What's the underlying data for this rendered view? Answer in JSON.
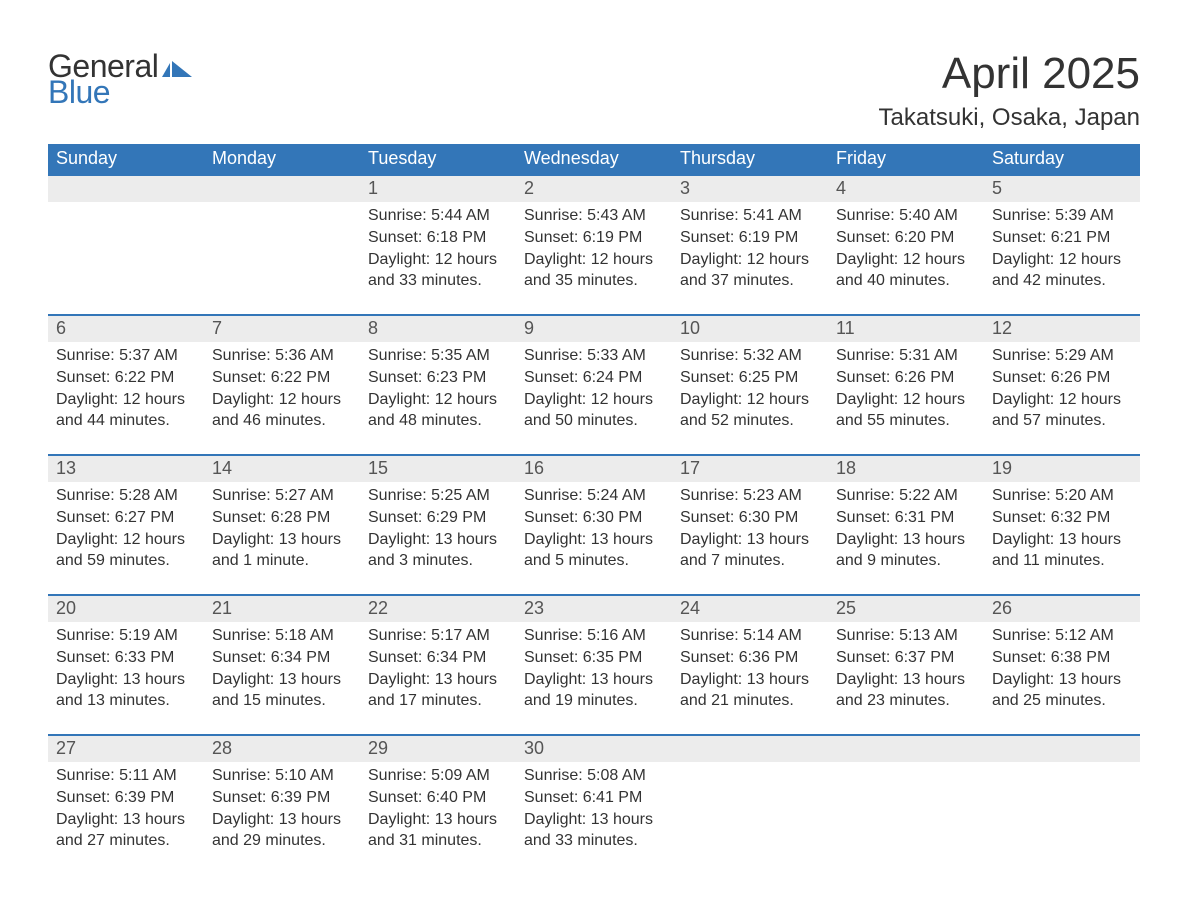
{
  "logo": {
    "line1": "General",
    "line2": "Blue",
    "color1": "#333333",
    "color2": "#3376b8"
  },
  "title": "April 2025",
  "location": "Takatsuki, Osaka, Japan",
  "layout": {
    "type": "calendar",
    "columns": 7,
    "rows": 5,
    "header_bg": "#3376b8",
    "header_fg": "#ffffff",
    "daynum_bg": "#ececec",
    "week_divider_color": "#3376b8",
    "body_bg": "#ffffff",
    "text_color": "#333333",
    "title_fontsize": 44,
    "location_fontsize": 24,
    "dow_fontsize": 18,
    "daynum_fontsize": 18,
    "body_fontsize": 16
  },
  "days_of_week": [
    "Sunday",
    "Monday",
    "Tuesday",
    "Wednesday",
    "Thursday",
    "Friday",
    "Saturday"
  ],
  "weeks": [
    [
      null,
      null,
      {
        "n": "1",
        "sunrise": "Sunrise: 5:44 AM",
        "sunset": "Sunset: 6:18 PM",
        "dl1": "Daylight: 12 hours",
        "dl2": "and 33 minutes."
      },
      {
        "n": "2",
        "sunrise": "Sunrise: 5:43 AM",
        "sunset": "Sunset: 6:19 PM",
        "dl1": "Daylight: 12 hours",
        "dl2": "and 35 minutes."
      },
      {
        "n": "3",
        "sunrise": "Sunrise: 5:41 AM",
        "sunset": "Sunset: 6:19 PM",
        "dl1": "Daylight: 12 hours",
        "dl2": "and 37 minutes."
      },
      {
        "n": "4",
        "sunrise": "Sunrise: 5:40 AM",
        "sunset": "Sunset: 6:20 PM",
        "dl1": "Daylight: 12 hours",
        "dl2": "and 40 minutes."
      },
      {
        "n": "5",
        "sunrise": "Sunrise: 5:39 AM",
        "sunset": "Sunset: 6:21 PM",
        "dl1": "Daylight: 12 hours",
        "dl2": "and 42 minutes."
      }
    ],
    [
      {
        "n": "6",
        "sunrise": "Sunrise: 5:37 AM",
        "sunset": "Sunset: 6:22 PM",
        "dl1": "Daylight: 12 hours",
        "dl2": "and 44 minutes."
      },
      {
        "n": "7",
        "sunrise": "Sunrise: 5:36 AM",
        "sunset": "Sunset: 6:22 PM",
        "dl1": "Daylight: 12 hours",
        "dl2": "and 46 minutes."
      },
      {
        "n": "8",
        "sunrise": "Sunrise: 5:35 AM",
        "sunset": "Sunset: 6:23 PM",
        "dl1": "Daylight: 12 hours",
        "dl2": "and 48 minutes."
      },
      {
        "n": "9",
        "sunrise": "Sunrise: 5:33 AM",
        "sunset": "Sunset: 6:24 PM",
        "dl1": "Daylight: 12 hours",
        "dl2": "and 50 minutes."
      },
      {
        "n": "10",
        "sunrise": "Sunrise: 5:32 AM",
        "sunset": "Sunset: 6:25 PM",
        "dl1": "Daylight: 12 hours",
        "dl2": "and 52 minutes."
      },
      {
        "n": "11",
        "sunrise": "Sunrise: 5:31 AM",
        "sunset": "Sunset: 6:26 PM",
        "dl1": "Daylight: 12 hours",
        "dl2": "and 55 minutes."
      },
      {
        "n": "12",
        "sunrise": "Sunrise: 5:29 AM",
        "sunset": "Sunset: 6:26 PM",
        "dl1": "Daylight: 12 hours",
        "dl2": "and 57 minutes."
      }
    ],
    [
      {
        "n": "13",
        "sunrise": "Sunrise: 5:28 AM",
        "sunset": "Sunset: 6:27 PM",
        "dl1": "Daylight: 12 hours",
        "dl2": "and 59 minutes."
      },
      {
        "n": "14",
        "sunrise": "Sunrise: 5:27 AM",
        "sunset": "Sunset: 6:28 PM",
        "dl1": "Daylight: 13 hours",
        "dl2": "and 1 minute."
      },
      {
        "n": "15",
        "sunrise": "Sunrise: 5:25 AM",
        "sunset": "Sunset: 6:29 PM",
        "dl1": "Daylight: 13 hours",
        "dl2": "and 3 minutes."
      },
      {
        "n": "16",
        "sunrise": "Sunrise: 5:24 AM",
        "sunset": "Sunset: 6:30 PM",
        "dl1": "Daylight: 13 hours",
        "dl2": "and 5 minutes."
      },
      {
        "n": "17",
        "sunrise": "Sunrise: 5:23 AM",
        "sunset": "Sunset: 6:30 PM",
        "dl1": "Daylight: 13 hours",
        "dl2": "and 7 minutes."
      },
      {
        "n": "18",
        "sunrise": "Sunrise: 5:22 AM",
        "sunset": "Sunset: 6:31 PM",
        "dl1": "Daylight: 13 hours",
        "dl2": "and 9 minutes."
      },
      {
        "n": "19",
        "sunrise": "Sunrise: 5:20 AM",
        "sunset": "Sunset: 6:32 PM",
        "dl1": "Daylight: 13 hours",
        "dl2": "and 11 minutes."
      }
    ],
    [
      {
        "n": "20",
        "sunrise": "Sunrise: 5:19 AM",
        "sunset": "Sunset: 6:33 PM",
        "dl1": "Daylight: 13 hours",
        "dl2": "and 13 minutes."
      },
      {
        "n": "21",
        "sunrise": "Sunrise: 5:18 AM",
        "sunset": "Sunset: 6:34 PM",
        "dl1": "Daylight: 13 hours",
        "dl2": "and 15 minutes."
      },
      {
        "n": "22",
        "sunrise": "Sunrise: 5:17 AM",
        "sunset": "Sunset: 6:34 PM",
        "dl1": "Daylight: 13 hours",
        "dl2": "and 17 minutes."
      },
      {
        "n": "23",
        "sunrise": "Sunrise: 5:16 AM",
        "sunset": "Sunset: 6:35 PM",
        "dl1": "Daylight: 13 hours",
        "dl2": "and 19 minutes."
      },
      {
        "n": "24",
        "sunrise": "Sunrise: 5:14 AM",
        "sunset": "Sunset: 6:36 PM",
        "dl1": "Daylight: 13 hours",
        "dl2": "and 21 minutes."
      },
      {
        "n": "25",
        "sunrise": "Sunrise: 5:13 AM",
        "sunset": "Sunset: 6:37 PM",
        "dl1": "Daylight: 13 hours",
        "dl2": "and 23 minutes."
      },
      {
        "n": "26",
        "sunrise": "Sunrise: 5:12 AM",
        "sunset": "Sunset: 6:38 PM",
        "dl1": "Daylight: 13 hours",
        "dl2": "and 25 minutes."
      }
    ],
    [
      {
        "n": "27",
        "sunrise": "Sunrise: 5:11 AM",
        "sunset": "Sunset: 6:39 PM",
        "dl1": "Daylight: 13 hours",
        "dl2": "and 27 minutes."
      },
      {
        "n": "28",
        "sunrise": "Sunrise: 5:10 AM",
        "sunset": "Sunset: 6:39 PM",
        "dl1": "Daylight: 13 hours",
        "dl2": "and 29 minutes."
      },
      {
        "n": "29",
        "sunrise": "Sunrise: 5:09 AM",
        "sunset": "Sunset: 6:40 PM",
        "dl1": "Daylight: 13 hours",
        "dl2": "and 31 minutes."
      },
      {
        "n": "30",
        "sunrise": "Sunrise: 5:08 AM",
        "sunset": "Sunset: 6:41 PM",
        "dl1": "Daylight: 13 hours",
        "dl2": "and 33 minutes."
      },
      null,
      null,
      null
    ]
  ]
}
